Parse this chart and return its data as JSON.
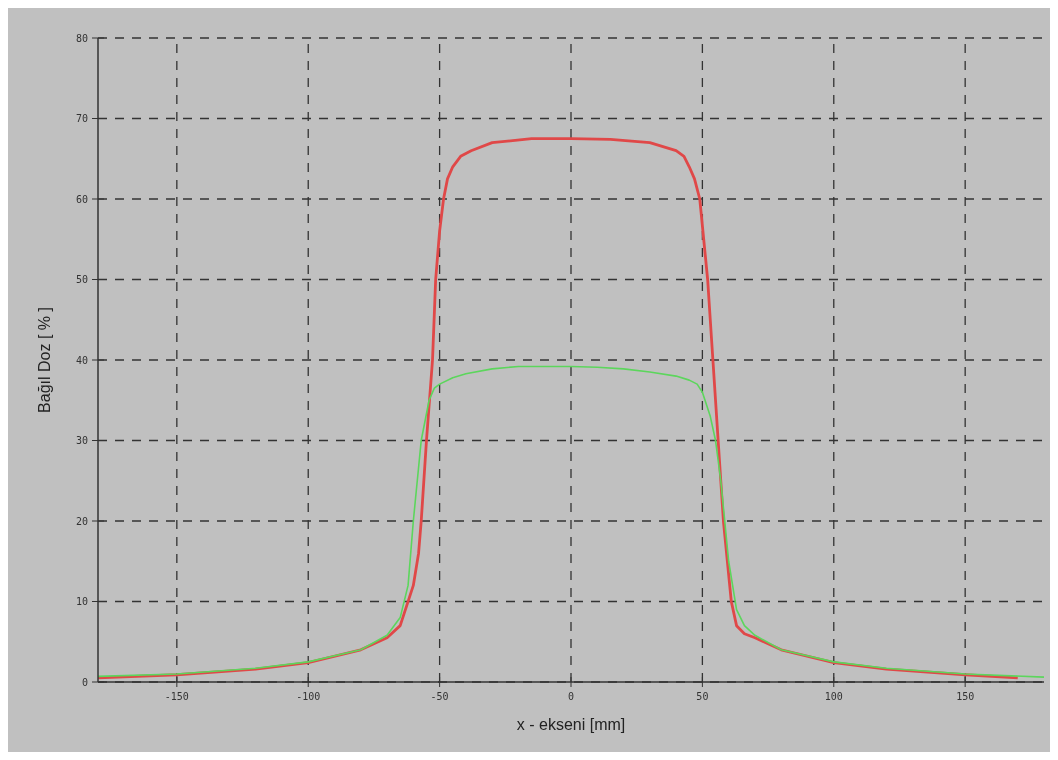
{
  "chart_data": {
    "type": "line",
    "xlabel": "x - ekseni [mm]",
    "ylabel": "Bağıl Doz  [ % ]",
    "xlim": [
      -180,
      180
    ],
    "ylim": [
      0,
      80
    ],
    "xticks": [
      -150,
      -100,
      -50,
      0,
      50,
      100,
      150
    ],
    "yticks": [
      0,
      10,
      20,
      30,
      40,
      50,
      60,
      70,
      80
    ],
    "grid": true,
    "line_style": "solid",
    "marker": "none",
    "series": [
      {
        "color": "#e04848",
        "x": [
          -180,
          -150,
          -120,
          -100,
          -80,
          -70,
          -65,
          -60,
          -58,
          -57,
          -55,
          -52.7,
          -51.5,
          -50,
          -48.5,
          -47,
          -45,
          -42,
          -38,
          -30,
          -15,
          0,
          15,
          30,
          40,
          43,
          45,
          47,
          49,
          52,
          54,
          56,
          58,
          61,
          63,
          66,
          70,
          80,
          100,
          120,
          150,
          170
        ],
        "values": [
          0.5,
          0.9,
          1.6,
          2.4,
          4,
          5.5,
          7,
          12,
          16,
          20,
          30,
          40,
          50,
          56,
          60,
          62.5,
          64,
          65.3,
          66,
          67,
          67.5,
          67.5,
          67.4,
          67,
          66,
          65.3,
          64,
          62.5,
          60,
          50,
          40,
          30,
          20,
          10,
          7,
          6,
          5.5,
          4,
          2.4,
          1.6,
          0.9,
          0.5
        ]
      },
      {
        "color": "#5cd65c",
        "x": [
          -180,
          -150,
          -120,
          -100,
          -80,
          -70,
          -65,
          -62,
          -60,
          -57,
          -54,
          -52,
          -50,
          -45,
          -40,
          -30,
          -20,
          0,
          10,
          20,
          30,
          40,
          45,
          48,
          50,
          53,
          55,
          57,
          60,
          63,
          66,
          70,
          80,
          100,
          120,
          150,
          180
        ],
        "values": [
          0.7,
          1,
          1.7,
          2.5,
          4,
          5.8,
          8,
          12,
          20,
          30,
          35,
          36.5,
          37,
          37.8,
          38.3,
          38.9,
          39.2,
          39.2,
          39.1,
          38.9,
          38.5,
          38,
          37.5,
          37,
          36,
          33,
          30,
          25,
          15,
          9,
          7,
          5.8,
          4,
          2.5,
          1.7,
          1,
          0.6
        ]
      }
    ]
  }
}
